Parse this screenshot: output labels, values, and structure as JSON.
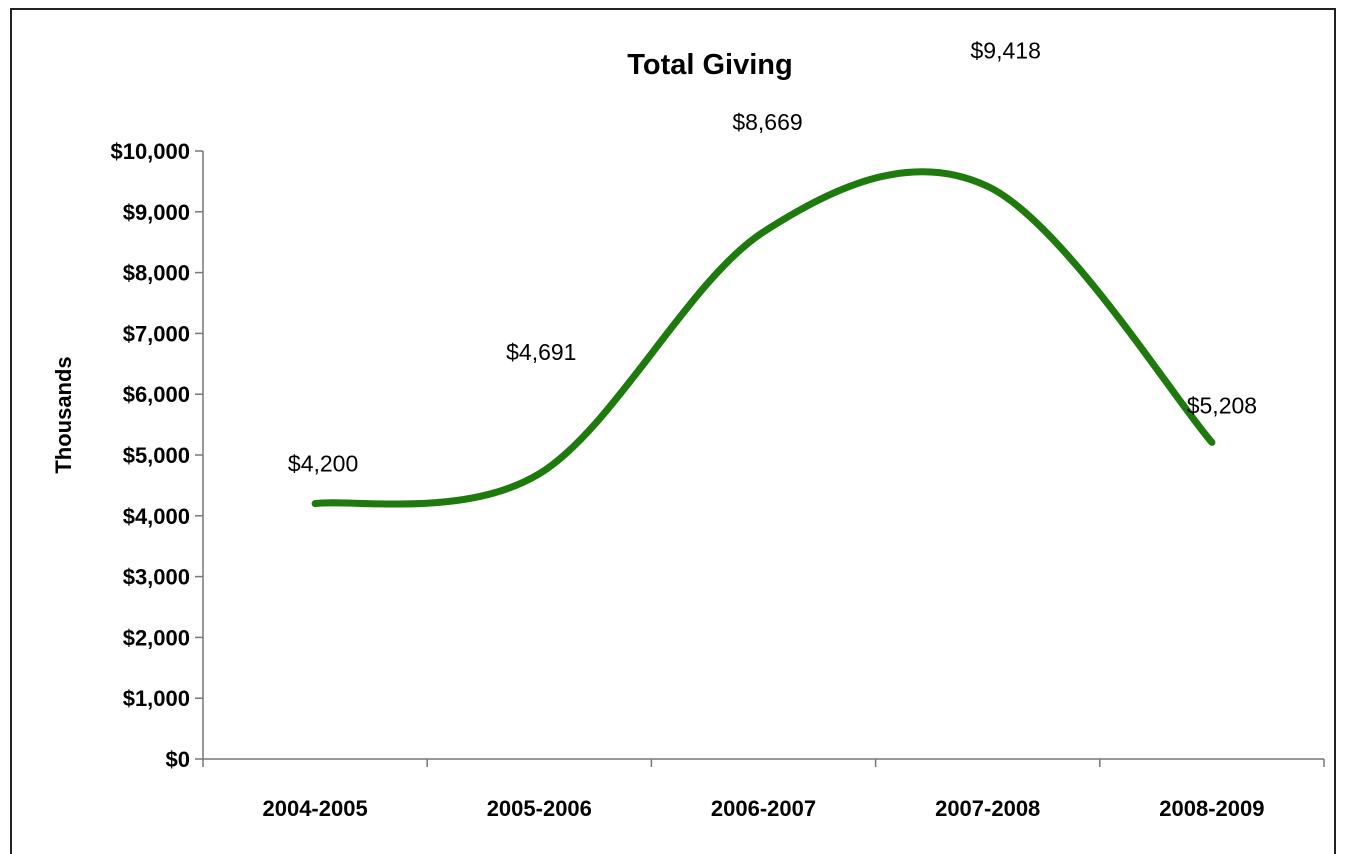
{
  "chart_data": {
    "type": "line",
    "title": "Total Giving",
    "xlabel": "",
    "ylabel": "Thousands",
    "categories": [
      "2004-2005",
      "2005-2006",
      "2006-2007",
      "2007-2008",
      "2008-2009"
    ],
    "values": [
      4200,
      4691,
      8669,
      9418,
      5208
    ],
    "data_labels": [
      "$4,200",
      "$4,691",
      "$8,669",
      "$9,418",
      "$5,208"
    ],
    "ylim": [
      0,
      10000
    ],
    "yticks": [
      0,
      1000,
      2000,
      3000,
      4000,
      5000,
      6000,
      7000,
      8000,
      9000,
      10000
    ],
    "ytick_labels": [
      "$0",
      "$1,000",
      "$2,000",
      "$3,000",
      "$4,000",
      "$5,000",
      "$6,000",
      "$7,000",
      "$8,000",
      "$9,000",
      "$10,000"
    ],
    "grid": false,
    "legend": "none",
    "smoothed": true,
    "line_color": "#1f7a0e"
  }
}
